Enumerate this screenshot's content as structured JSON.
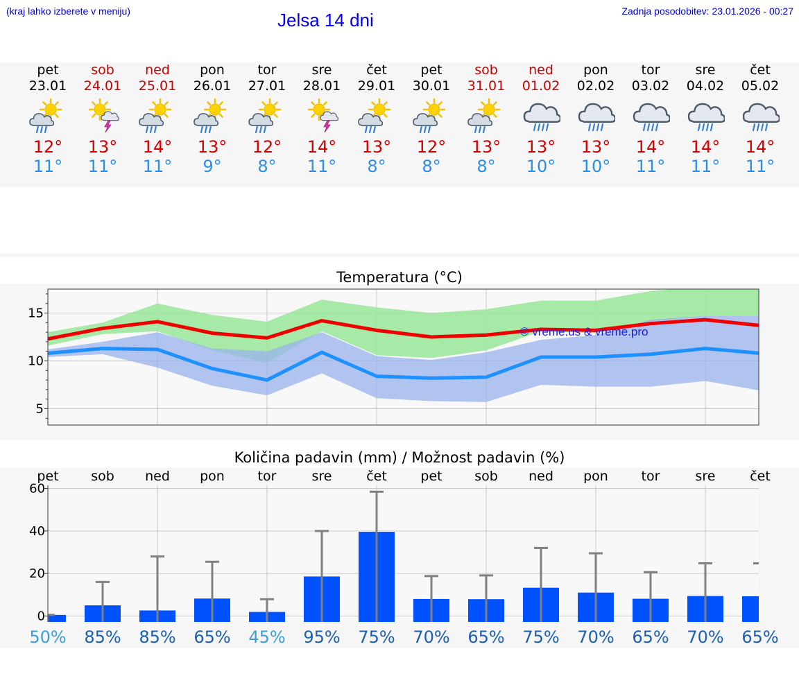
{
  "header": {
    "hint": "(kraj lahko izberete v meniju)",
    "title": "Jelsa 14 dni",
    "updated": "Zadnja posodobitev: 23.01.2026 - 00:27"
  },
  "colors": {
    "max_temp": "#d40000",
    "min_temp": "#2c8ee6",
    "weekend": "#cc0000",
    "max_line": "#ee0000",
    "min_line": "#1e90ff",
    "max_band": "#99e699",
    "min_band": "#99b3ee",
    "bar": "#0051ff",
    "errbar": "#808080"
  },
  "days": [
    {
      "name": "pet",
      "date": "23.01",
      "weekend": false,
      "icon": "sun-cloud-rain-icon",
      "tmax": "12°",
      "tmin": "11°"
    },
    {
      "name": "sob",
      "date": "24.01",
      "weekend": true,
      "icon": "sun-thunder-icon",
      "tmax": "13°",
      "tmin": "11°"
    },
    {
      "name": "ned",
      "date": "25.01",
      "weekend": true,
      "icon": "sun-cloud-rain-icon",
      "tmax": "14°",
      "tmin": "11°"
    },
    {
      "name": "pon",
      "date": "26.01",
      "weekend": false,
      "icon": "sun-cloud-rain-icon",
      "tmax": "13°",
      "tmin": "9°"
    },
    {
      "name": "tor",
      "date": "27.01",
      "weekend": false,
      "icon": "sun-cloud-rain-icon",
      "tmax": "12°",
      "tmin": "8°"
    },
    {
      "name": "sre",
      "date": "28.01",
      "weekend": false,
      "icon": "sun-thunder-icon",
      "tmax": "14°",
      "tmin": "11°"
    },
    {
      "name": "čet",
      "date": "29.01",
      "weekend": false,
      "icon": "sun-cloud-rain-icon",
      "tmax": "13°",
      "tmin": "8°"
    },
    {
      "name": "pet",
      "date": "30.01",
      "weekend": false,
      "icon": "sun-cloud-rain-icon",
      "tmax": "12°",
      "tmin": "8°"
    },
    {
      "name": "sob",
      "date": "31.01",
      "weekend": true,
      "icon": "sun-cloud-rain-icon",
      "tmax": "13°",
      "tmin": "8°"
    },
    {
      "name": "ned",
      "date": "01.02",
      "weekend": true,
      "icon": "cloud-rain-icon",
      "tmax": "13°",
      "tmin": "10°"
    },
    {
      "name": "pon",
      "date": "02.02",
      "weekend": false,
      "icon": "cloud-rain-icon",
      "tmax": "13°",
      "tmin": "10°"
    },
    {
      "name": "tor",
      "date": "03.02",
      "weekend": false,
      "icon": "cloud-rain-icon",
      "tmax": "14°",
      "tmin": "11°"
    },
    {
      "name": "sre",
      "date": "04.02",
      "weekend": false,
      "icon": "cloud-rain-icon",
      "tmax": "14°",
      "tmin": "11°"
    },
    {
      "name": "čet",
      "date": "05.02",
      "weekend": false,
      "icon": "cloud-rain-icon",
      "tmax": "14°",
      "tmin": "11°"
    }
  ],
  "chart_data": [
    {
      "type": "line",
      "title": "Temperatura (°C)",
      "watermark": "© vreme.us & vreme.pro",
      "ylim": [
        3.3,
        17.5
      ],
      "yticks": [
        5,
        10,
        15
      ],
      "grid": true,
      "x": [
        0,
        1,
        2,
        3,
        4,
        5,
        6,
        7,
        8,
        9,
        10,
        11,
        12,
        13
      ],
      "series": [
        {
          "name": "max",
          "values": [
            12.3,
            13.4,
            14.1,
            12.9,
            12.4,
            14.2,
            13.2,
            12.5,
            12.7,
            13.3,
            13.2,
            13.9,
            14.3,
            13.7
          ],
          "band_low": [
            11.6,
            12.8,
            13.1,
            11.1,
            9.8,
            13.1,
            10.6,
            10.3,
            11.1,
            13.1,
            12.9,
            14.1,
            14.7,
            14.7
          ],
          "band_high": [
            13.0,
            14.0,
            16.0,
            14.8,
            14.1,
            16.4,
            15.6,
            15.0,
            15.4,
            16.3,
            16.3,
            17.3,
            17.8,
            17.7
          ]
        },
        {
          "name": "min",
          "values": [
            10.8,
            11.3,
            11.2,
            9.2,
            8.0,
            10.9,
            8.4,
            8.2,
            8.3,
            10.4,
            10.4,
            10.7,
            11.3,
            10.8
          ],
          "band_low": [
            10.4,
            10.7,
            9.3,
            7.4,
            6.4,
            8.7,
            6.1,
            5.8,
            5.7,
            7.5,
            7.3,
            7.3,
            7.9,
            6.9
          ],
          "band_high": [
            11.2,
            12.0,
            13.0,
            11.3,
            11.0,
            13.0,
            10.5,
            10.1,
            10.9,
            12.2,
            12.7,
            14.3,
            14.7,
            14.7
          ]
        }
      ]
    },
    {
      "type": "bar",
      "title": "Količina padavin (mm) / Možnost padavin (%)",
      "categories": [
        "pet",
        "sob",
        "ned",
        "pon",
        "tor",
        "sre",
        "čet",
        "pet",
        "sob",
        "ned",
        "pon",
        "tor",
        "sre",
        "čet"
      ],
      "values": [
        0.5,
        5.0,
        2.6,
        8.2,
        1.9,
        18.6,
        39.6,
        8.0,
        7.9,
        13.3,
        11.0,
        8.1,
        9.4,
        9.3
      ],
      "errbar_high": [
        0.5,
        16,
        28,
        25.5,
        7.9,
        40,
        58.5,
        18.8,
        19.1,
        32,
        29.5,
        20.6,
        24.8,
        24.8
      ],
      "ylim": [
        -2.8,
        61.5
      ],
      "yticks": [
        0,
        20,
        40,
        60
      ],
      "chance": [
        "50%",
        "85%",
        "85%",
        "65%",
        "45%",
        "95%",
        "75%",
        "70%",
        "65%",
        "75%",
        "70%",
        "65%",
        "70%",
        "65%"
      ],
      "chance_light": [
        true,
        false,
        false,
        false,
        true,
        false,
        false,
        false,
        false,
        false,
        false,
        false,
        false,
        false
      ]
    }
  ]
}
